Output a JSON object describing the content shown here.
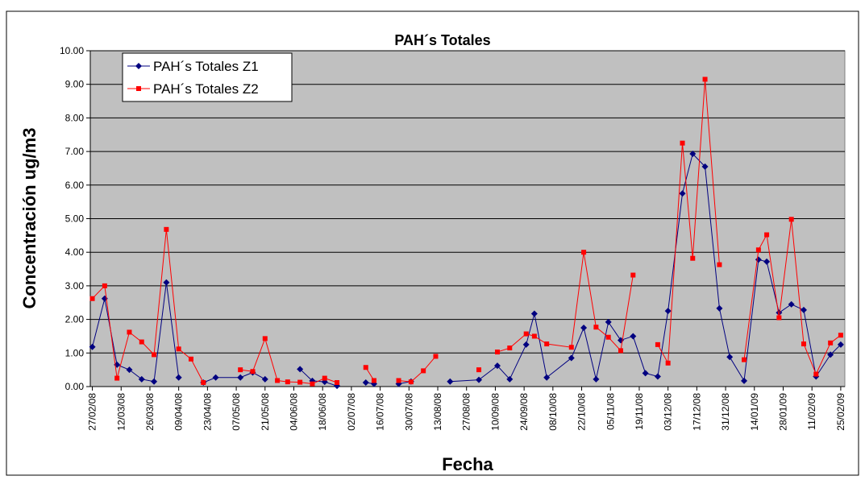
{
  "chart_data": {
    "type": "line",
    "title": "PAH´s Totales",
    "x_label": "Fecha",
    "y_label": "Concentración ug/m3",
    "xlim": [
      "2008-02-26",
      "2009-02-27"
    ],
    "xticks": [
      {
        "value": "2008-02-27",
        "label": "27/02/08"
      },
      {
        "value": "2008-03-12",
        "label": "12/03/08"
      },
      {
        "value": "2008-03-26",
        "label": "26/03/08"
      },
      {
        "value": "2008-04-09",
        "label": "09/04/08"
      },
      {
        "value": "2008-04-23",
        "label": "23/04/08"
      },
      {
        "value": "2008-05-07",
        "label": "07/05/08"
      },
      {
        "value": "2008-05-21",
        "label": "21/05/08"
      },
      {
        "value": "2008-06-04",
        "label": "04/06/08"
      },
      {
        "value": "2008-06-18",
        "label": "18/06/08"
      },
      {
        "value": "2008-07-02",
        "label": "02/07/08"
      },
      {
        "value": "2008-07-16",
        "label": "16/07/08"
      },
      {
        "value": "2008-07-30",
        "label": "30/07/08"
      },
      {
        "value": "2008-08-13",
        "label": "13/08/08"
      },
      {
        "value": "2008-08-27",
        "label": "27/08/08"
      },
      {
        "value": "2008-09-10",
        "label": "10/09/08"
      },
      {
        "value": "2008-09-24",
        "label": "24/09/08"
      },
      {
        "value": "2008-10-08",
        "label": "08/10/08"
      },
      {
        "value": "2008-10-22",
        "label": "22/10/08"
      },
      {
        "value": "2008-11-05",
        "label": "05/11/08"
      },
      {
        "value": "2008-11-19",
        "label": "19/11/08"
      },
      {
        "value": "2008-12-03",
        "label": "03/12/08"
      },
      {
        "value": "2008-12-17",
        "label": "17/12/08"
      },
      {
        "value": "2008-12-31",
        "label": "31/12/08"
      },
      {
        "value": "2009-01-14",
        "label": "14/01/09"
      },
      {
        "value": "2009-01-28",
        "label": "28/01/09"
      },
      {
        "value": "2009-02-11",
        "label": "11/02/09"
      },
      {
        "value": "2009-02-25",
        "label": "25/02/09"
      }
    ],
    "ylim": [
      0,
      10
    ],
    "yticks": [
      {
        "value": 0,
        "label": "0.00"
      },
      {
        "value": 1,
        "label": "1.00"
      },
      {
        "value": 2,
        "label": "2.00"
      },
      {
        "value": 3,
        "label": "3.00"
      },
      {
        "value": 4,
        "label": "4.00"
      },
      {
        "value": 5,
        "label": "5.00"
      },
      {
        "value": 6,
        "label": "6.00"
      },
      {
        "value": 7,
        "label": "7.00"
      },
      {
        "value": 8,
        "label": "8.00"
      },
      {
        "value": 9,
        "label": "9.00"
      },
      {
        "value": 10,
        "label": "10.00"
      }
    ],
    "grid": true,
    "legend": "upper left",
    "series": [
      {
        "name": "PAH´s Totales Z1",
        "color": "#000080",
        "marker": "diamond",
        "x": [
          "2008-02-27",
          "2008-03-04",
          "2008-03-10",
          "2008-03-16",
          "2008-03-22",
          "2008-03-28",
          "2008-04-03",
          "2008-04-09",
          "2008-04-15",
          "2008-04-21",
          "2008-04-27",
          "2008-05-09",
          "2008-05-15",
          "2008-05-21",
          "2008-05-27",
          "2008-06-07",
          "2008-06-13",
          "2008-06-19",
          "2008-06-25",
          "2008-07-01",
          "2008-07-09",
          "2008-07-13",
          "2008-07-19",
          "2008-07-25",
          "2008-07-31",
          "2008-08-06",
          "2008-08-19",
          "2008-09-02",
          "2008-09-11",
          "2008-09-17",
          "2008-09-25",
          "2008-09-29",
          "2008-10-05",
          "2008-10-17",
          "2008-10-23",
          "2008-10-29",
          "2008-11-04",
          "2008-11-10",
          "2008-11-16",
          "2008-11-22",
          "2008-11-28",
          "2008-12-03",
          "2008-12-10",
          "2008-12-15",
          "2008-12-21",
          "2008-12-28",
          "2009-01-02",
          "2009-01-09",
          "2009-01-16",
          "2009-01-20",
          "2009-01-26",
          "2009-02-01",
          "2009-02-07",
          "2009-02-13",
          "2009-02-20",
          "2009-02-25"
        ],
        "values": [
          1.18,
          2.62,
          0.65,
          0.5,
          0.22,
          0.15,
          3.1,
          0.27,
          null,
          0.12,
          0.27,
          0.27,
          0.42,
          0.22,
          null,
          0.52,
          0.17,
          0.14,
          0.02,
          null,
          0.12,
          0.08,
          null,
          0.08,
          0.15,
          null,
          0.15,
          0.2,
          0.62,
          0.22,
          1.25,
          2.17,
          0.27,
          0.85,
          1.75,
          0.22,
          1.92,
          1.38,
          1.5,
          0.4,
          0.3,
          2.25,
          5.75,
          6.93,
          6.55,
          2.33,
          0.88,
          0.17,
          3.78,
          3.72,
          2.2,
          2.45,
          2.28,
          0.3,
          0.95,
          1.25
        ]
      },
      {
        "name": "PAH´s Totales Z2",
        "color": "#ff0000",
        "marker": "square",
        "x": [
          "2008-02-27",
          "2008-03-04",
          "2008-03-10",
          "2008-03-16",
          "2008-03-22",
          "2008-03-28",
          "2008-04-03",
          "2008-04-09",
          "2008-04-15",
          "2008-04-21",
          "2008-04-27",
          "2008-05-09",
          "2008-05-15",
          "2008-05-21",
          "2008-05-27",
          "2008-06-01",
          "2008-06-07",
          "2008-06-13",
          "2008-06-19",
          "2008-06-25",
          "2008-07-01",
          "2008-07-09",
          "2008-07-13",
          "2008-07-19",
          "2008-07-25",
          "2008-07-31",
          "2008-08-06",
          "2008-08-12",
          "2008-08-19",
          "2008-09-02",
          "2008-09-07",
          "2008-09-11",
          "2008-09-17",
          "2008-09-25",
          "2008-09-29",
          "2008-10-05",
          "2008-10-17",
          "2008-10-23",
          "2008-10-29",
          "2008-11-04",
          "2008-11-10",
          "2008-11-16",
          "2008-11-22",
          "2008-11-28",
          "2008-12-03",
          "2008-12-10",
          "2008-12-15",
          "2008-12-21",
          "2008-12-28",
          "2009-01-02",
          "2009-01-09",
          "2009-01-16",
          "2009-01-20",
          "2009-01-26",
          "2009-02-01",
          "2009-02-07",
          "2009-02-13",
          "2009-02-20",
          "2009-02-25"
        ],
        "values": [
          2.62,
          3.0,
          0.25,
          1.62,
          1.33,
          0.95,
          4.68,
          1.12,
          0.82,
          0.12,
          null,
          0.5,
          0.45,
          1.43,
          0.18,
          0.14,
          0.13,
          0.08,
          0.25,
          0.12,
          null,
          0.57,
          0.18,
          null,
          0.18,
          0.14,
          0.47,
          0.9,
          null,
          0.5,
          null,
          1.03,
          1.15,
          1.57,
          1.5,
          1.27,
          1.17,
          4.0,
          1.77,
          1.47,
          1.07,
          3.32,
          null,
          1.25,
          0.7,
          7.25,
          3.82,
          9.15,
          3.63,
          null,
          0.8,
          4.07,
          4.52,
          2.05,
          4.98,
          1.27,
          0.37,
          1.3,
          1.53
        ]
      }
    ]
  }
}
